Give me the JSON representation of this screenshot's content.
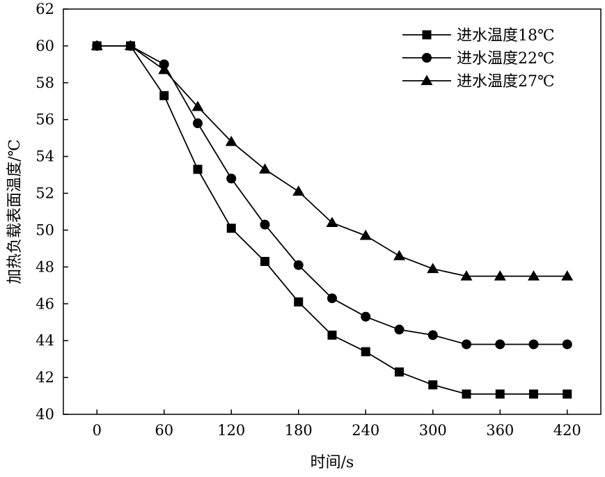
{
  "chart_data": {
    "type": "line",
    "xlabel": "时间/s",
    "ylabel": "加热负载表面温度/℃",
    "xlim": [
      -30,
      450
    ],
    "ylim": [
      40,
      62
    ],
    "xticks": [
      0,
      60,
      120,
      180,
      240,
      300,
      360,
      420
    ],
    "yticks": [
      40,
      42,
      44,
      46,
      48,
      50,
      52,
      54,
      56,
      58,
      60,
      62
    ],
    "x": [
      0,
      30,
      60,
      90,
      120,
      150,
      180,
      210,
      240,
      270,
      300,
      330,
      360,
      390,
      420
    ],
    "legend_position": "top-right",
    "grid": false,
    "series": [
      {
        "name": "进水温度18℃",
        "marker": "square",
        "values": [
          60.0,
          60.0,
          57.3,
          53.3,
          50.1,
          48.3,
          46.1,
          44.3,
          43.4,
          42.3,
          41.6,
          41.1,
          41.1,
          41.1,
          41.1
        ]
      },
      {
        "name": "进水温度22℃",
        "marker": "circle",
        "values": [
          60.0,
          60.0,
          59.0,
          55.8,
          52.8,
          50.3,
          48.1,
          46.3,
          45.3,
          44.6,
          44.3,
          43.8,
          43.8,
          43.8,
          43.8
        ]
      },
      {
        "name": "进水温度27℃",
        "marker": "triangle",
        "values": [
          60.0,
          60.0,
          58.7,
          56.7,
          54.8,
          53.3,
          52.1,
          50.4,
          49.7,
          48.6,
          47.9,
          47.5,
          47.5,
          47.5,
          47.5
        ]
      }
    ]
  }
}
